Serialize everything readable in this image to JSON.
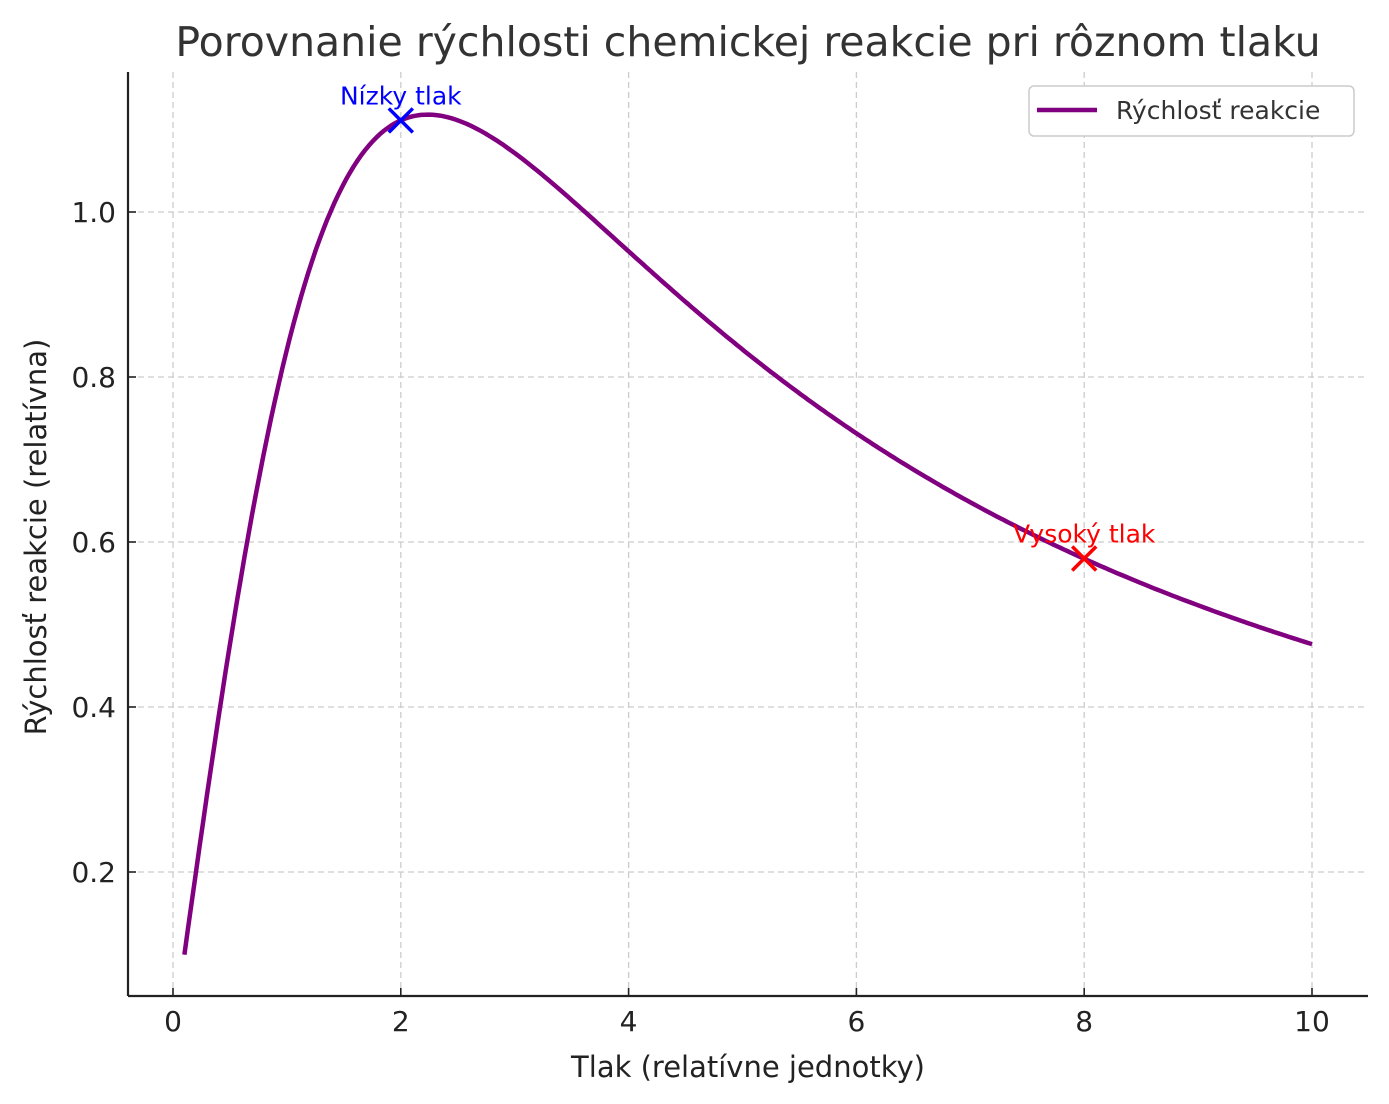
{
  "chart_data": {
    "type": "line",
    "title": "Porovnanie rýchlosti chemickej reakcie pri rôznom tlaku",
    "xlabel": "Tlak (relatívne jednotky)",
    "ylabel": "Rýchlosť reakcie (relatívna)",
    "xlim": [
      -0.4,
      10.5
    ],
    "ylim": [
      0.05,
      1.17
    ],
    "xticks": [
      0,
      2,
      4,
      6,
      8,
      10
    ],
    "xtick_labels": [
      "0",
      "2",
      "4",
      "6",
      "8",
      "10"
    ],
    "yticks": [
      0.2,
      0.4,
      0.6,
      0.8,
      1.0
    ],
    "ytick_labels": [
      "0.2",
      "0.4",
      "0.6",
      "0.8",
      "1.0"
    ],
    "grid": true,
    "legend_position": "upper right",
    "series": [
      {
        "name": "Rýchlosť reakcie",
        "color": "#800080",
        "x": [
          0.1,
          0.5,
          1.0,
          1.5,
          2.0,
          2.25,
          2.5,
          3.0,
          3.5,
          4.0,
          4.5,
          5.0,
          5.5,
          6.0,
          6.5,
          7.0,
          7.5,
          8.0,
          8.5,
          9.0,
          9.5,
          10.0
        ],
        "y": [
          0.1,
          0.48,
          0.83,
          1.04,
          1.11,
          1.118,
          1.11,
          1.07,
          1.01,
          0.95,
          0.89,
          0.83,
          0.78,
          0.73,
          0.69,
          0.65,
          0.61,
          0.58,
          0.55,
          0.52,
          0.5,
          0.477
        ]
      }
    ],
    "annotations": [
      {
        "label": "Nízky tlak",
        "x": 2,
        "y": 1.111,
        "marker": "x",
        "color": "#0000ff"
      },
      {
        "label": "Vysoký tlak",
        "x": 8,
        "y": 0.58,
        "marker": "x",
        "color": "#ff0000"
      }
    ]
  }
}
